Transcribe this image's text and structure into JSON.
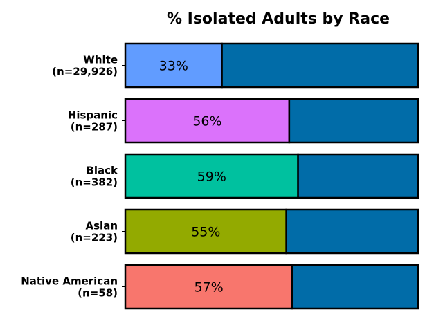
{
  "chart_data": {
    "type": "bar",
    "orientation": "horizontal",
    "stacked": true,
    "title": "% Isolated Adults by Race",
    "xlabel": "",
    "ylabel": "",
    "xlim": [
      0,
      100
    ],
    "grid": false,
    "categories": [
      {
        "label_line1": "White",
        "label_line2": "(n=29,926)"
      },
      {
        "label_line1": "Hispanic",
        "label_line2": "(n=287)"
      },
      {
        "label_line1": "Black",
        "label_line2": "(n=382)"
      },
      {
        "label_line1": "Asian",
        "label_line2": "(n=223)"
      },
      {
        "label_line1": "Native American",
        "label_line2": "(n=58)"
      }
    ],
    "values": [
      33,
      56,
      59,
      55,
      57
    ],
    "data_labels": [
      "33%",
      "56%",
      "59%",
      "55%",
      "57%"
    ],
    "colors": [
      "#619cff",
      "#db72fb",
      "#00c19f",
      "#93aa00",
      "#f8766d"
    ],
    "remainder_color": "#016ca8",
    "outline_color": "#000000"
  }
}
